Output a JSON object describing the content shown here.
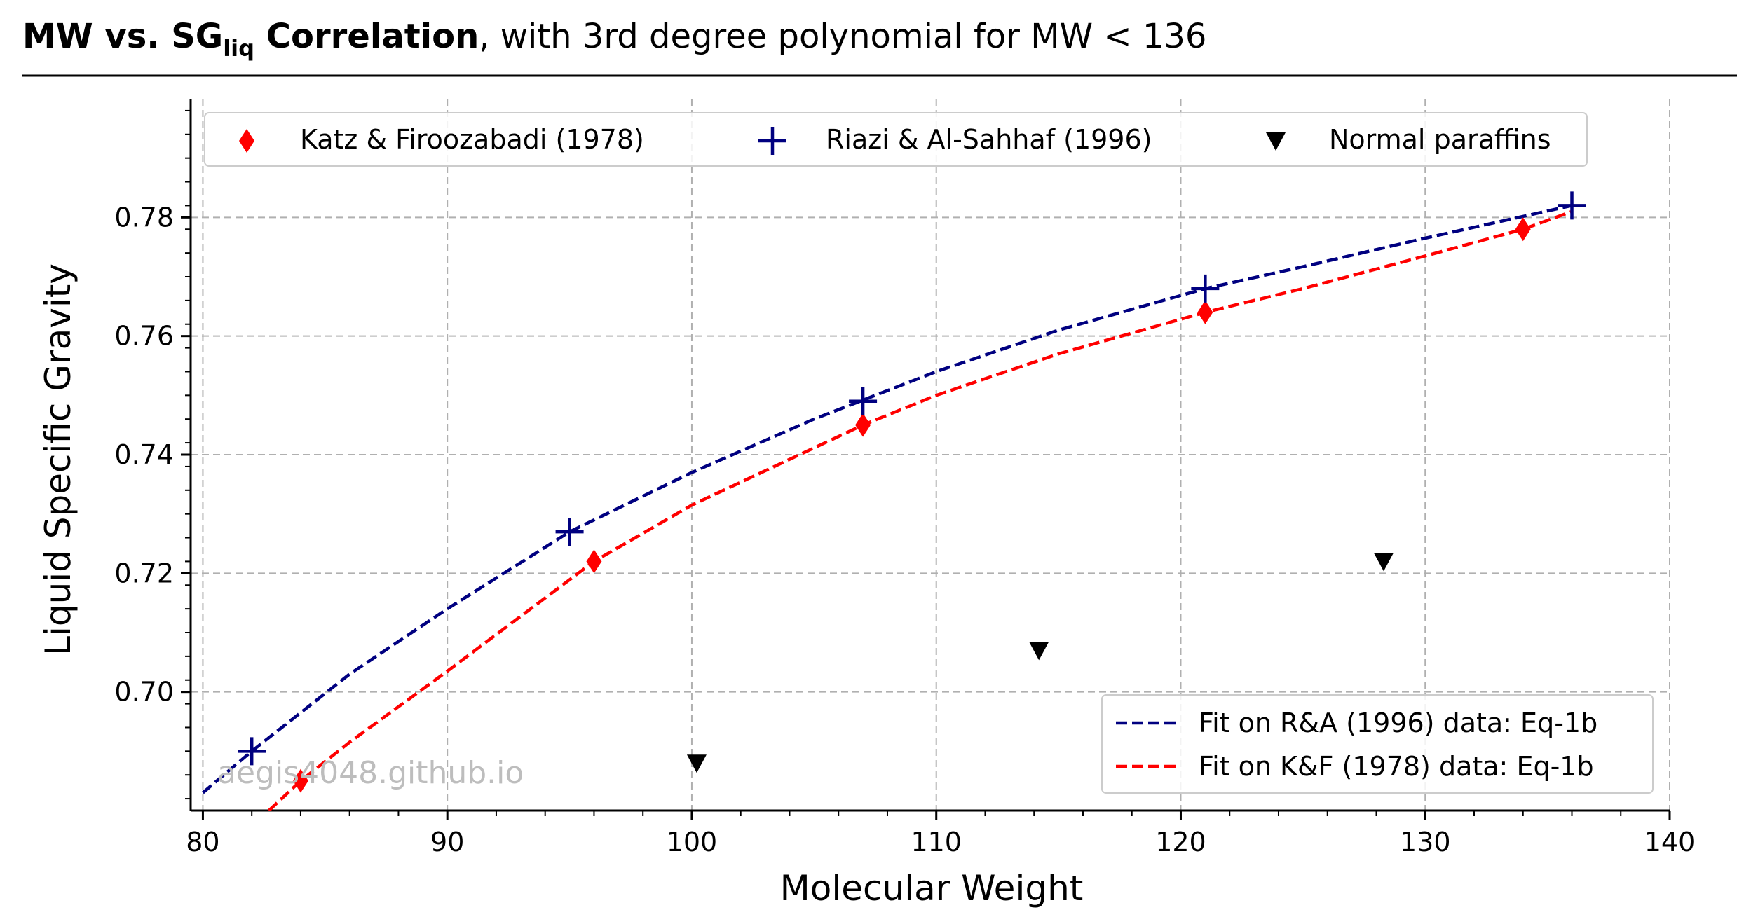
{
  "chart_data": {
    "type": "scatter",
    "title": {
      "bold_part1": "MW vs. ",
      "bold_sg": "SG",
      "bold_sub": "liq",
      "bold_part2": " Correlation",
      "normal_part": ", with 3rd degree polynomial for MW < 136"
    },
    "xlabel": "Molecular Weight",
    "ylabel": "Liquid Specific Gravity",
    "xlim": [
      79.5,
      140
    ],
    "ylim": [
      0.68,
      0.8
    ],
    "xticks": [
      80,
      90,
      100,
      110,
      120,
      130,
      140
    ],
    "xtick_labels": [
      "80",
      "90",
      "100",
      "110",
      "120",
      "130",
      "140"
    ],
    "yticks": [
      0.7,
      0.72,
      0.74,
      0.76,
      0.78
    ],
    "ytick_labels": [
      "0.70",
      "0.72",
      "0.74",
      "0.76",
      "0.78"
    ],
    "grid": true,
    "watermark": "aegis4048.github.io",
    "series": [
      {
        "name": "Katz & Firoozabadi (1978)",
        "marker": "diamond",
        "color": "#ff0000",
        "x": [
          84,
          96,
          107,
          121,
          134
        ],
        "y": [
          0.685,
          0.722,
          0.745,
          0.764,
          0.778
        ]
      },
      {
        "name": "Riazi & Al-Sahhaf (1996)",
        "marker": "plus",
        "color": "#000080",
        "x": [
          82,
          95,
          107,
          121,
          136
        ],
        "y": [
          0.69,
          0.727,
          0.749,
          0.768,
          0.782
        ]
      },
      {
        "name": "Normal paraffins",
        "marker": "triangle-down",
        "color": "#000000",
        "x": [
          100.2,
          114.2,
          128.3
        ],
        "y": [
          0.688,
          0.707,
          0.722
        ]
      }
    ],
    "fits": [
      {
        "name": "Fit on R&A (1996) data: Eq-1b",
        "color": "#000080",
        "dash": true,
        "x": [
          80,
          82,
          86,
          90,
          95,
          100,
          105,
          110,
          115,
          121,
          125,
          130,
          136
        ],
        "y": [
          0.683,
          0.69,
          0.703,
          0.714,
          0.727,
          0.737,
          0.746,
          0.754,
          0.761,
          0.768,
          0.7717,
          0.7765,
          0.782
        ]
      },
      {
        "name": "Fit on K&F (1978) data: Eq-1b",
        "color": "#ff0000",
        "dash": true,
        "x": [
          82.7,
          84,
          86,
          90,
          96,
          100,
          107,
          110,
          115,
          121,
          125,
          130,
          134,
          136
        ],
        "y": [
          0.68,
          0.685,
          0.6915,
          0.7035,
          0.722,
          0.7315,
          0.745,
          0.75,
          0.757,
          0.764,
          0.768,
          0.7735,
          0.778,
          0.781
        ]
      }
    ],
    "legend_top": {
      "placement": "top",
      "items": [
        "Katz & Firoozabadi (1978)",
        "Riazi & Al-Sahhaf (1996)",
        "Normal paraffins"
      ]
    },
    "legend_lines": {
      "placement": "lower-right",
      "items": [
        "Fit on R&A (1996) data: Eq-1b",
        "Fit on K&F (1978) data: Eq-1b"
      ]
    }
  }
}
